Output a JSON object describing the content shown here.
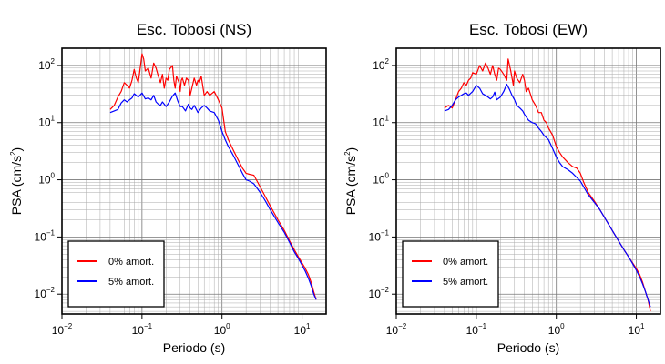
{
  "chart_data": [
    {
      "type": "line",
      "title": "Esc. Tobosi (NS)",
      "xlabel": "Periodo (s)",
      "ylabel": "PSA (cm/s²)",
      "ylabel_base": "PSA (cm/s",
      "ylabel_sup": "2",
      "ylabel_end": ")",
      "x_scale": "log",
      "y_scale": "log",
      "xlim": [
        0.01,
        20
      ],
      "ylim": [
        0.0045,
        200
      ],
      "grid": true,
      "legend_position": "bottom-left",
      "x_ticks": [
        {
          "base": "10",
          "exp": "−2"
        },
        {
          "base": "10",
          "exp": "−1"
        },
        {
          "base": "10",
          "exp": "0"
        },
        {
          "base": "10",
          "exp": "1"
        }
      ],
      "y_ticks": [
        {
          "base": "10",
          "exp": "−2"
        },
        {
          "base": "10",
          "exp": "−1"
        },
        {
          "base": "10",
          "exp": "0"
        },
        {
          "base": "10",
          "exp": "1"
        },
        {
          "base": "10",
          "exp": "2"
        }
      ],
      "series": [
        {
          "name": "0% amort.",
          "color": "#ff0000",
          "x": [
            0.04,
            0.045,
            0.05,
            0.055,
            0.06,
            0.065,
            0.07,
            0.075,
            0.08,
            0.085,
            0.09,
            0.095,
            0.1,
            0.105,
            0.11,
            0.12,
            0.13,
            0.14,
            0.15,
            0.16,
            0.17,
            0.18,
            0.19,
            0.2,
            0.21,
            0.22,
            0.24,
            0.25,
            0.26,
            0.27,
            0.29,
            0.3,
            0.31,
            0.32,
            0.34,
            0.36,
            0.38,
            0.4,
            0.42,
            0.45,
            0.48,
            0.5,
            0.52,
            0.55,
            0.6,
            0.65,
            0.7,
            0.8,
            0.9,
            1.0,
            1.1,
            1.2,
            1.4,
            1.6,
            1.8,
            2.0,
            2.2,
            2.5,
            3,
            3.5,
            4,
            5,
            6,
            7,
            8,
            9,
            10,
            11,
            12,
            13,
            14,
            15
          ],
          "y": [
            17,
            20,
            28,
            35,
            50,
            45,
            40,
            55,
            85,
            60,
            50,
            90,
            160,
            130,
            80,
            90,
            60,
            110,
            90,
            65,
            50,
            70,
            40,
            60,
            55,
            85,
            100,
            55,
            40,
            65,
            50,
            35,
            55,
            60,
            45,
            60,
            55,
            30,
            40,
            60,
            45,
            55,
            50,
            65,
            30,
            35,
            30,
            35,
            25,
            18,
            7,
            5,
            3.2,
            2.2,
            1.6,
            1.3,
            1.25,
            1.2,
            0.75,
            0.5,
            0.35,
            0.2,
            0.13,
            0.085,
            0.06,
            0.045,
            0.035,
            0.028,
            0.022,
            0.016,
            0.011,
            0.008
          ]
        },
        {
          "name": "5% amort.",
          "color": "#0000ff",
          "x": [
            0.04,
            0.045,
            0.05,
            0.055,
            0.06,
            0.065,
            0.07,
            0.075,
            0.08,
            0.09,
            0.1,
            0.11,
            0.12,
            0.13,
            0.14,
            0.15,
            0.16,
            0.17,
            0.18,
            0.19,
            0.2,
            0.22,
            0.24,
            0.26,
            0.28,
            0.3,
            0.32,
            0.35,
            0.38,
            0.4,
            0.42,
            0.45,
            0.5,
            0.55,
            0.6,
            0.65,
            0.7,
            0.8,
            0.9,
            1.0,
            1.1,
            1.2,
            1.4,
            1.6,
            1.8,
            2.0,
            2.2,
            2.5,
            3,
            3.5,
            4,
            5,
            6,
            7,
            8,
            9,
            10,
            11,
            12,
            13,
            14,
            15
          ],
          "y": [
            15,
            16,
            17,
            22,
            25,
            23,
            25,
            27,
            32,
            28,
            33,
            26,
            27,
            25,
            30,
            23,
            21,
            20,
            23,
            21,
            19,
            23,
            29,
            33,
            24,
            19,
            19,
            16,
            21,
            18,
            17,
            20,
            15,
            18,
            20,
            18,
            16,
            15,
            11,
            7,
            5,
            3.8,
            2.6,
            1.8,
            1.3,
            1.0,
            0.95,
            0.85,
            0.6,
            0.42,
            0.3,
            0.18,
            0.12,
            0.08,
            0.055,
            0.042,
            0.032,
            0.025,
            0.019,
            0.014,
            0.01,
            0.008
          ]
        }
      ]
    },
    {
      "type": "line",
      "title": "Esc. Tobosi (EW)",
      "xlabel": "Periodo (s)",
      "ylabel": "PSA (cm/s²)",
      "ylabel_base": "PSA (cm/s",
      "ylabel_sup": "2",
      "ylabel_end": ")",
      "x_scale": "log",
      "y_scale": "log",
      "xlim": [
        0.01,
        20
      ],
      "ylim": [
        0.0045,
        200
      ],
      "grid": true,
      "legend_position": "bottom-left",
      "x_ticks": [
        {
          "base": "10",
          "exp": "−2"
        },
        {
          "base": "10",
          "exp": "−1"
        },
        {
          "base": "10",
          "exp": "0"
        },
        {
          "base": "10",
          "exp": "1"
        }
      ],
      "y_ticks": [
        {
          "base": "10",
          "exp": "−2"
        },
        {
          "base": "10",
          "exp": "−1"
        },
        {
          "base": "10",
          "exp": "0"
        },
        {
          "base": "10",
          "exp": "1"
        },
        {
          "base": "10",
          "exp": "2"
        }
      ],
      "series": [
        {
          "name": "0% amort.",
          "color": "#ff0000",
          "x": [
            0.04,
            0.045,
            0.05,
            0.055,
            0.06,
            0.065,
            0.07,
            0.075,
            0.08,
            0.085,
            0.09,
            0.1,
            0.11,
            0.12,
            0.13,
            0.14,
            0.15,
            0.16,
            0.17,
            0.18,
            0.19,
            0.2,
            0.22,
            0.24,
            0.25,
            0.27,
            0.29,
            0.3,
            0.32,
            0.35,
            0.38,
            0.4,
            0.42,
            0.45,
            0.5,
            0.55,
            0.6,
            0.65,
            0.7,
            0.75,
            0.8,
            0.9,
            1.0,
            1.1,
            1.2,
            1.4,
            1.6,
            1.8,
            2.0,
            2.2,
            2.5,
            3,
            3.5,
            4,
            5,
            6,
            7,
            8,
            9,
            10,
            11,
            12,
            13,
            14,
            15
          ],
          "y": [
            18,
            20,
            18,
            25,
            35,
            40,
            50,
            45,
            55,
            60,
            75,
            70,
            100,
            80,
            110,
            90,
            70,
            100,
            70,
            55,
            90,
            85,
            70,
            55,
            130,
            80,
            45,
            80,
            60,
            50,
            70,
            55,
            35,
            40,
            25,
            20,
            15,
            15,
            11,
            10,
            8,
            6,
            3.8,
            3,
            2.5,
            2.0,
            1.7,
            1.6,
            1.3,
            0.9,
            0.6,
            0.42,
            0.3,
            0.22,
            0.13,
            0.085,
            0.06,
            0.045,
            0.035,
            0.028,
            0.022,
            0.016,
            0.011,
            0.008,
            0.005
          ]
        },
        {
          "name": "5% amort.",
          "color": "#0000ff",
          "x": [
            0.04,
            0.045,
            0.05,
            0.055,
            0.06,
            0.065,
            0.07,
            0.075,
            0.08,
            0.09,
            0.1,
            0.11,
            0.12,
            0.13,
            0.14,
            0.15,
            0.16,
            0.17,
            0.18,
            0.2,
            0.22,
            0.24,
            0.26,
            0.28,
            0.3,
            0.32,
            0.35,
            0.38,
            0.4,
            0.45,
            0.5,
            0.55,
            0.6,
            0.65,
            0.7,
            0.8,
            0.9,
            1.0,
            1.1,
            1.2,
            1.4,
            1.6,
            1.8,
            2.0,
            2.2,
            2.5,
            3,
            3.5,
            4,
            5,
            6,
            7,
            8,
            9,
            10,
            11,
            12,
            13,
            14,
            15
          ],
          "y": [
            16,
            17,
            20,
            25,
            28,
            30,
            32,
            33,
            30,
            35,
            45,
            40,
            32,
            30,
            28,
            26,
            28,
            34,
            25,
            28,
            35,
            47,
            38,
            30,
            25,
            20,
            18,
            16,
            14,
            11,
            10,
            9.5,
            8,
            7,
            6,
            5,
            3.5,
            2.5,
            2.0,
            1.7,
            1.5,
            1.3,
            1.1,
            0.95,
            0.75,
            0.55,
            0.4,
            0.3,
            0.22,
            0.13,
            0.085,
            0.06,
            0.045,
            0.034,
            0.026,
            0.02,
            0.015,
            0.011,
            0.008,
            0.006
          ]
        }
      ]
    }
  ]
}
